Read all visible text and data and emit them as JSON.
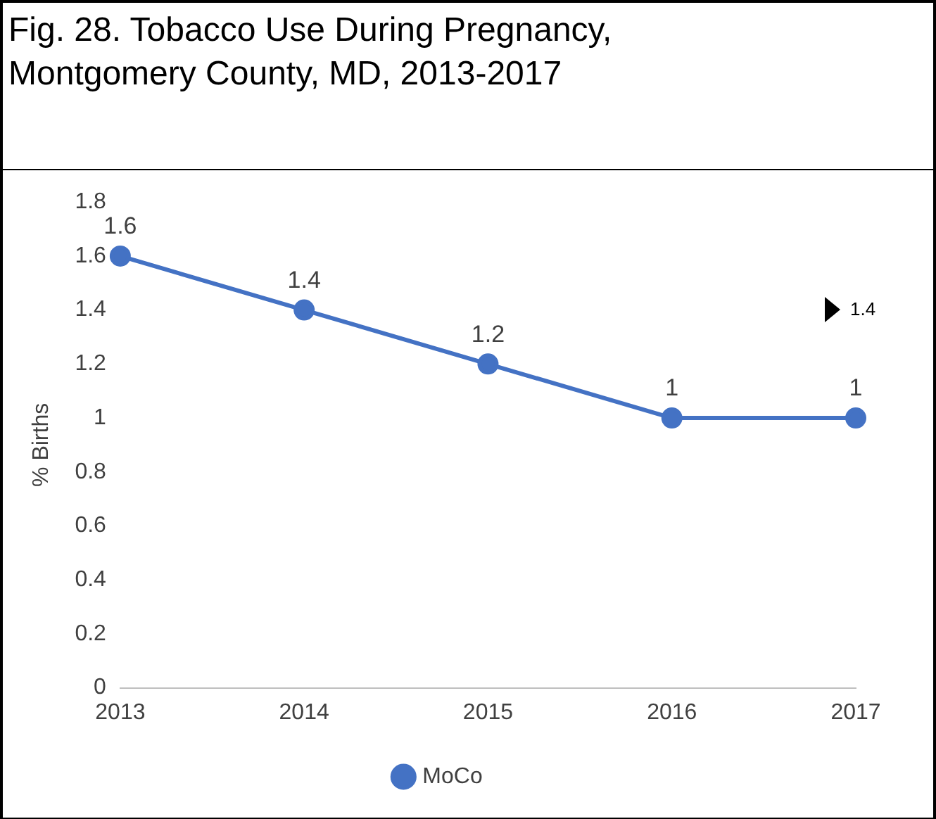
{
  "chart_data": {
    "type": "line",
    "title": "Fig. 28. Tobacco Use During Pregnancy, Montgomery County, MD, 2013-2017",
    "ylabel": "% Births",
    "categories": [
      "2013",
      "2014",
      "2015",
      "2016",
      "2017"
    ],
    "series": [
      {
        "name": "MoCo",
        "color": "#4472c4",
        "values": [
          1.6,
          1.4,
          1.2,
          1,
          1
        ]
      }
    ],
    "ylim": [
      0,
      1.8
    ],
    "yticks": [
      0,
      0.2,
      0.4,
      0.6,
      0.8,
      1,
      1.2,
      1.4,
      1.6,
      1.8
    ],
    "annotations": [
      "1.4"
    ],
    "data_labels": true,
    "grid": false,
    "legend": "bottom",
    "marker": "circle",
    "line_style": "solid"
  }
}
